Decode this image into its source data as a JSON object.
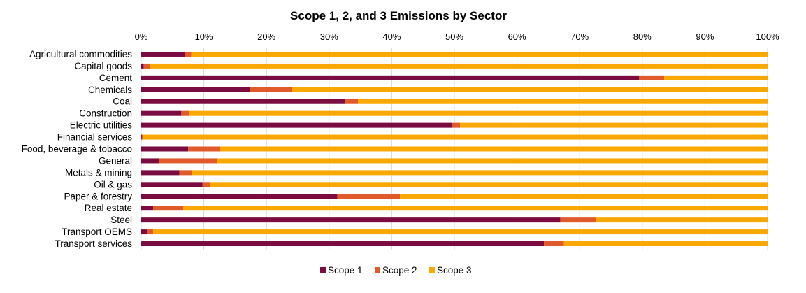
{
  "chart_data": {
    "type": "bar",
    "orientation": "horizontal",
    "stacked": "percent",
    "title": "Scope 1, 2, and 3 Emissions by Sector",
    "xlim": [
      0,
      100
    ],
    "x_ticks": [
      "0%",
      "10%",
      "20%",
      "30%",
      "40%",
      "50%",
      "60%",
      "70%",
      "80%",
      "90%",
      "100%"
    ],
    "grid": true,
    "legend_position": "bottom",
    "categories": [
      "Agricultural commodities",
      "Capital goods",
      "Cement",
      "Chemicals",
      "Coal",
      "Construction",
      "Electric utilities",
      "Financial services",
      "Food, beverage & tobacco",
      "General",
      "Metals & mining",
      "Oil & gas",
      "Paper & forestry",
      "Real estate",
      "Steel",
      "Transport OEMS",
      "Transport services"
    ],
    "series": [
      {
        "name": "Scope 1",
        "color": "#7b0c42",
        "values": [
          7.0,
          0.4,
          79.5,
          17.3,
          32.6,
          6.4,
          49.7,
          0.1,
          7.5,
          2.8,
          6.1,
          9.8,
          31.3,
          1.9,
          66.9,
          0.9,
          64.3
        ]
      },
      {
        "name": "Scope 2",
        "color": "#e05a2b",
        "values": [
          1.0,
          1.0,
          4.0,
          6.7,
          2.0,
          1.3,
          1.2,
          0.2,
          5.0,
          9.3,
          2.0,
          1.2,
          10.0,
          4.8,
          5.7,
          1.0,
          3.2
        ]
      },
      {
        "name": "Scope 3",
        "color": "#f8a800",
        "values": [
          92.0,
          98.6,
          16.5,
          76.0,
          65.4,
          92.3,
          49.1,
          99.7,
          87.5,
          87.9,
          91.9,
          89.0,
          58.7,
          93.3,
          27.4,
          98.1,
          32.5
        ]
      }
    ]
  }
}
